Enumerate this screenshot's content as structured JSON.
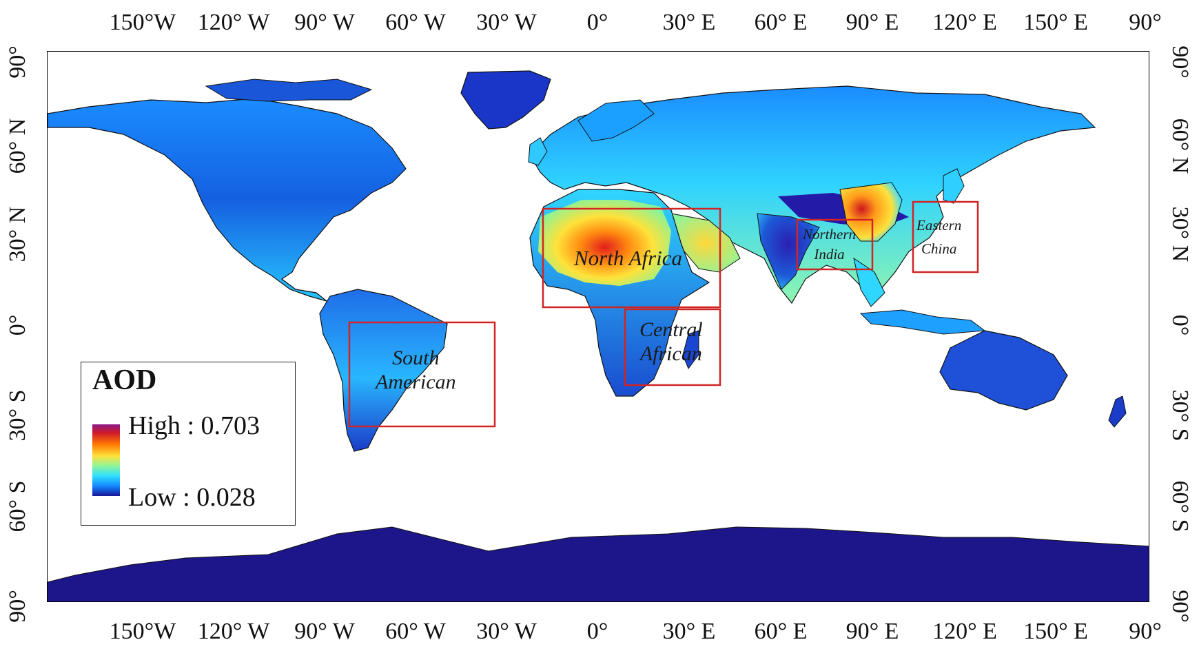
{
  "axes": {
    "top_ticks": [
      "150°W",
      "120° W",
      "90° W",
      "60° W",
      "30° W",
      "0°",
      "30° E",
      "60° E",
      "90° E",
      "120° E",
      "150° E",
      "90°"
    ],
    "bottom_ticks": [
      "150°W",
      "120° W",
      "90° W",
      "60° W",
      "30° W",
      "0°",
      "30° E",
      "60° E",
      "90° E",
      "120° E",
      "150° E",
      "90°"
    ],
    "left_ticks": [
      "90°",
      "60° N",
      "30° N",
      "0°",
      "30° S",
      "60° S",
      "90°"
    ],
    "right_ticks": [
      "90°",
      "60° N",
      "30° N",
      "0°",
      "30° S",
      "60° S",
      "90°"
    ]
  },
  "legend": {
    "title": "AOD",
    "high_label": "High : 0.703",
    "low_label": "Low : 0.028",
    "colors": [
      "#8b1a8b",
      "#d11a2a",
      "#ff7a00",
      "#ffe13a",
      "#8ff59a",
      "#2fe0ff",
      "#1488ff",
      "#18169a"
    ]
  },
  "regions": [
    {
      "id": "north-africa",
      "label_lines": [
        "North Africa"
      ]
    },
    {
      "id": "south-american",
      "label_lines": [
        "South",
        "American"
      ]
    },
    {
      "id": "central-african",
      "label_lines": [
        "Central",
        "African"
      ]
    },
    {
      "id": "northern-india",
      "label_lines": [
        "Northern",
        "India"
      ]
    },
    {
      "id": "eastern-china",
      "label_lines": [
        "Eastern",
        "China"
      ]
    }
  ],
  "colors": {
    "ocean": "#ffffff",
    "region_box": "#d12424",
    "antarctica": "#1c168a"
  }
}
